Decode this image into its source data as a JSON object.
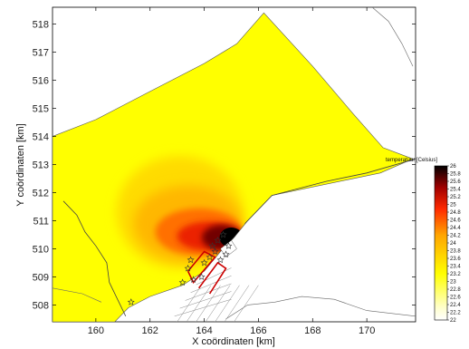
{
  "chart_data": {
    "type": "heatmap",
    "title": "",
    "xlabel": "X coördinaten [km]",
    "ylabel": "Y coördinaten [km]",
    "xlim": [
      158.4,
      171.8
    ],
    "ylim": [
      507.4,
      518.6
    ],
    "x_ticks": [
      160,
      162,
      164,
      166,
      168,
      170
    ],
    "y_ticks": [
      508,
      509,
      510,
      511,
      512,
      513,
      514,
      515,
      516,
      517,
      518
    ],
    "colorbar": {
      "title": "temperatuur [Celsius]",
      "min": 22,
      "max": 26,
      "ticks": [
        22,
        22.2,
        22.4,
        22.6,
        22.8,
        23,
        23.2,
        23.4,
        23.6,
        23.8,
        24,
        24.2,
        24.4,
        24.6,
        24.8,
        25,
        25.2,
        25.4,
        25.6,
        25.8,
        26
      ],
      "tick_labels": [
        "22",
        "22.2",
        "22.4",
        "22.6",
        "22.8",
        "23",
        "23.2",
        "23.4",
        "23.6",
        "23.8",
        "24",
        "24.2",
        "24.4",
        "24.6",
        "24.8",
        "25",
        "25.2",
        "25.4",
        "25.6",
        "25.8",
        "26"
      ],
      "colors": [
        "#ffffff",
        "#ffff00",
        "#ff0000",
        "#000000"
      ]
    },
    "background_temperature": 23.2,
    "hotspot": {
      "x": 165.0,
      "y": 510.4,
      "peak": 26
    },
    "domain_outline": [
      [
        158.4,
        514.0
      ],
      [
        160.0,
        514.6
      ],
      [
        162.0,
        515.6
      ],
      [
        164.0,
        516.6
      ],
      [
        165.2,
        517.3
      ],
      [
        166.2,
        518.4
      ],
      [
        168.0,
        516.5
      ],
      [
        169.5,
        514.8
      ],
      [
        170.6,
        513.6
      ],
      [
        171.7,
        513.2
      ],
      [
        170.5,
        512.7
      ],
      [
        169.0,
        512.4
      ],
      [
        166.5,
        511.9
      ],
      [
        165.6,
        511.0
      ],
      [
        165.1,
        510.4
      ],
      [
        164.6,
        509.9
      ],
      [
        164.0,
        509.2
      ],
      [
        163.2,
        508.7
      ],
      [
        162.0,
        508.3
      ],
      [
        161.2,
        507.9
      ],
      [
        160.7,
        507.4
      ],
      [
        158.4,
        507.4
      ]
    ],
    "coastline": [
      [
        158.8,
        511.7
      ],
      [
        159.3,
        511.2
      ],
      [
        159.6,
        510.6
      ],
      [
        160.0,
        510.1
      ],
      [
        160.4,
        509.5
      ],
      [
        160.5,
        508.8
      ],
      [
        160.8,
        508.2
      ],
      [
        161.1,
        507.6
      ]
    ],
    "land_boundary": [
      [
        165.5,
        510.9
      ],
      [
        166.5,
        511.9
      ],
      [
        168.5,
        512.4
      ],
      [
        170.0,
        512.7
      ],
      [
        171.8,
        513.2
      ]
    ],
    "top_curve": [
      [
        170.2,
        518.6
      ],
      [
        170.8,
        518.1
      ],
      [
        171.3,
        517.3
      ],
      [
        171.7,
        516.5
      ]
    ],
    "bottom_curve": [
      [
        164.8,
        507.5
      ],
      [
        165.6,
        508.0
      ],
      [
        166.6,
        508.1
      ],
      [
        167.6,
        508.3
      ],
      [
        168.8,
        508.2
      ],
      [
        170.0,
        507.8
      ],
      [
        171.8,
        507.6
      ]
    ],
    "left_lower_curve": [
      [
        158.4,
        508.6
      ],
      [
        159.5,
        508.4
      ],
      [
        160.2,
        508.1
      ]
    ],
    "discharge_outline": [
      [
        163.4,
        509.2
      ],
      [
        164.0,
        509.9
      ],
      [
        164.4,
        509.7
      ],
      [
        163.6,
        508.8
      ],
      [
        163.4,
        509.2
      ]
    ],
    "intake_outline": [
      [
        163.8,
        508.6
      ],
      [
        164.5,
        509.5
      ],
      [
        164.8,
        509.3
      ],
      [
        164.2,
        508.4
      ]
    ],
    "stations": [
      [
        161.3,
        508.1
      ],
      [
        163.2,
        508.8
      ],
      [
        163.4,
        509.3
      ],
      [
        163.6,
        508.9
      ],
      [
        163.9,
        509.0
      ],
      [
        164.0,
        509.5
      ],
      [
        164.2,
        509.7
      ],
      [
        164.4,
        509.9
      ],
      [
        164.3,
        510.1
      ],
      [
        164.6,
        509.6
      ],
      [
        164.8,
        509.8
      ],
      [
        164.5,
        510.3
      ],
      [
        164.9,
        510.1
      ],
      [
        163.5,
        509.6
      ],
      [
        164.7,
        510.5
      ]
    ]
  }
}
